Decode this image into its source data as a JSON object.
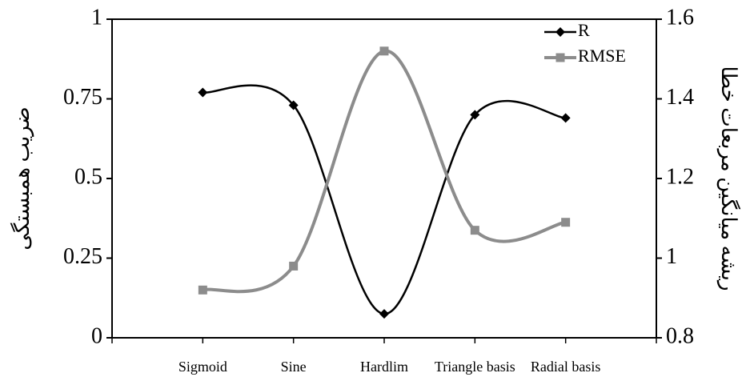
{
  "chart_data": {
    "type": "line",
    "categories": [
      "Sigmoid",
      "Sine",
      "Hardlim",
      "Triangle basis",
      "Radial basis"
    ],
    "y_label": "ضریب همبستگی",
    "y2_label": "ریشه میانگین مربعات خطا",
    "series": [
      {
        "name": "R",
        "color": "#000000",
        "marker": "diamond",
        "values": [
          0.77,
          0.73,
          0.075,
          0.7,
          0.69
        ]
      },
      {
        "name": "RMSE",
        "color": "#8c8c8c",
        "marker": "square",
        "axis": "y2",
        "values": [
          0.92,
          0.98,
          1.52,
          1.07,
          1.09
        ]
      }
    ],
    "ylim": [
      0,
      1
    ],
    "yticks": [
      0,
      0.25,
      0.5,
      0.75,
      1
    ],
    "y2lim": [
      0.8,
      1.6
    ],
    "y2ticks": [
      0.8,
      1,
      1.2,
      1.4,
      1.6
    ],
    "smooth": true,
    "legend": "top-right"
  }
}
